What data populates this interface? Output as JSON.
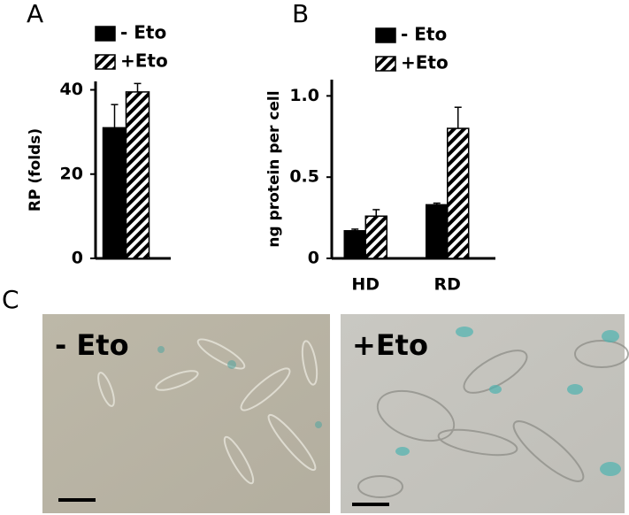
{
  "chart_data": [
    {
      "type": "bar",
      "label": "A",
      "ylabel": "RP (folds)",
      "categories": [
        null
      ],
      "series": [
        {
          "name": "- Eto",
          "color": "#000000",
          "values": [
            31
          ],
          "errors": [
            5.5
          ]
        },
        {
          "name": "+Eto",
          "color": "#000000",
          "pattern": "hatch",
          "values": [
            39.5
          ],
          "errors": [
            2
          ]
        }
      ],
      "ylim": [
        0,
        42
      ],
      "yticks": [
        0,
        20,
        40
      ]
    },
    {
      "type": "bar",
      "label": "B",
      "ylabel": "ng protein per cell",
      "categories": [
        "HD",
        "RD"
      ],
      "series": [
        {
          "name": "- Eto",
          "color": "#000000",
          "values": [
            0.17,
            0.33
          ],
          "errors": [
            0.01,
            0.01
          ]
        },
        {
          "name": "+Eto",
          "color": "#000000",
          "pattern": "hatch",
          "values": [
            0.26,
            0.8
          ],
          "errors": [
            0.04,
            0.13
          ]
        }
      ],
      "ylim": [
        0,
        1.1
      ],
      "yticks": [
        0,
        0.5,
        {
          "value": 1,
          "label": "1.0"
        }
      ]
    }
  ],
  "panel_c": {
    "label": "C",
    "images": [
      {
        "label": "- Eto"
      },
      {
        "label": "+Eto"
      }
    ]
  }
}
